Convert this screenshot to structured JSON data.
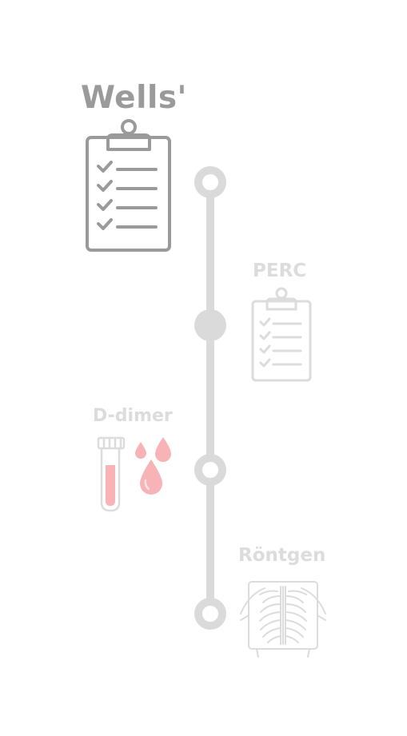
{
  "steps": [
    {
      "label": "Wells'",
      "icon": "clipboard-checklist-icon",
      "state": "active"
    },
    {
      "label": "PERC",
      "icon": "clipboard-checklist-icon",
      "state": "inactive"
    },
    {
      "label": "D-dimer",
      "icon": "blood-test-tube-icon",
      "state": "inactive"
    },
    {
      "label": "Röntgen",
      "icon": "chest-xray-icon",
      "state": "inactive"
    }
  ],
  "colors": {
    "active": "#9a9a9a",
    "inactive": "#dcdcdc",
    "rail": "#dadada",
    "blood": "#f7b3b6",
    "blood_light": "#fce3e4"
  }
}
